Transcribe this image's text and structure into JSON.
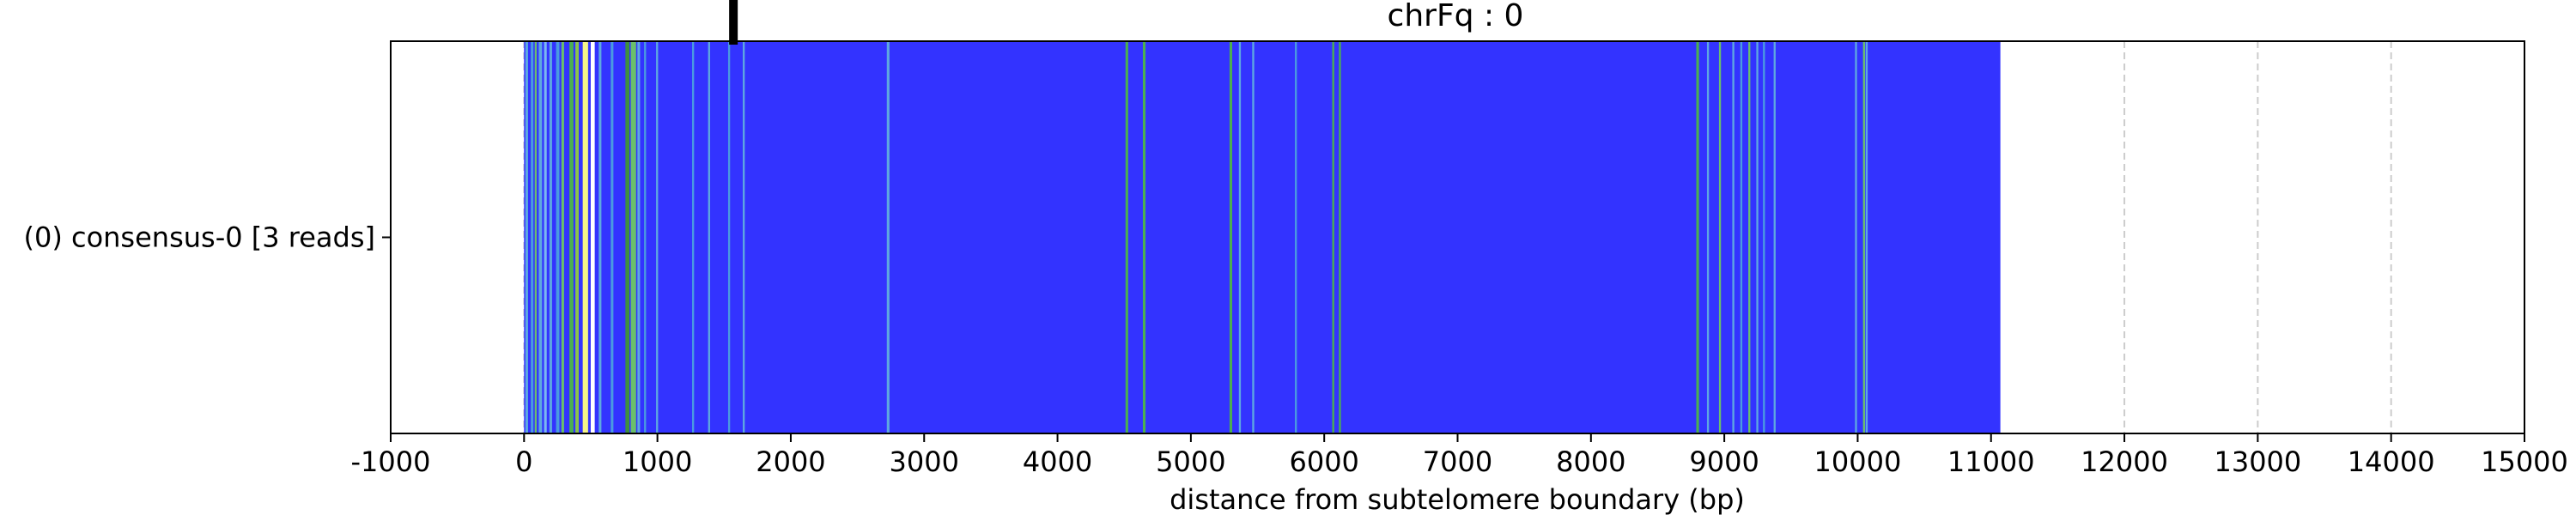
{
  "chart_data": {
    "type": "heatmap",
    "title": "chrFq : 0",
    "xlabel": "distance from subtelomere boundary (bp)",
    "ylabel": "",
    "xlim": [
      -1000,
      15000
    ],
    "xticks": [
      -1000,
      0,
      1000,
      2000,
      3000,
      4000,
      5000,
      6000,
      7000,
      8000,
      9000,
      10000,
      11000,
      12000,
      13000,
      14000,
      15000
    ],
    "tick_labels": [
      "-1000",
      "0",
      "1000",
      "2000",
      "3000",
      "4000",
      "5000",
      "6000",
      "7000",
      "8000",
      "9000",
      "10000",
      "11000",
      "12000",
      "13000",
      "14000",
      "15000"
    ],
    "grid": "vertical dashed",
    "rows": [
      {
        "label": "(0) consensus-0 [3 reads]",
        "start": 0,
        "end": 11070
      }
    ],
    "base_color": "#3333ff",
    "marker": {
      "position": 1570,
      "color": "#000000"
    },
    "bands": [
      {
        "pos": 10,
        "width": 20,
        "color": "#5ea8e0"
      },
      {
        "pos": 50,
        "width": 20,
        "color": "#4a9be0"
      },
      {
        "pos": 80,
        "width": 15,
        "color": "#6bbf6b"
      },
      {
        "pos": 110,
        "width": 25,
        "color": "#5ea8e0"
      },
      {
        "pos": 150,
        "width": 20,
        "color": "#7ab8f0"
      },
      {
        "pos": 190,
        "width": 20,
        "color": "#5ea8e0"
      },
      {
        "pos": 240,
        "width": 25,
        "color": "#4a9be0"
      },
      {
        "pos": 280,
        "width": 20,
        "color": "#6bbf6b"
      },
      {
        "pos": 340,
        "width": 30,
        "color": "#4caf50"
      },
      {
        "pos": 385,
        "width": 25,
        "color": "#8bc34a"
      },
      {
        "pos": 440,
        "width": 40,
        "color": "#f4f488"
      },
      {
        "pos": 500,
        "width": 30,
        "color": "#ffffff"
      },
      {
        "pos": 560,
        "width": 20,
        "color": "#5ea8e0"
      },
      {
        "pos": 650,
        "width": 20,
        "color": "#4a9be0"
      },
      {
        "pos": 760,
        "width": 30,
        "color": "#3f8f3f"
      },
      {
        "pos": 800,
        "width": 40,
        "color": "#6bbf6b"
      },
      {
        "pos": 850,
        "width": 20,
        "color": "#5ea8e0"
      },
      {
        "pos": 900,
        "width": 15,
        "color": "#4a9be0"
      },
      {
        "pos": 990,
        "width": 15,
        "color": "#5ea8e0"
      },
      {
        "pos": 1260,
        "width": 15,
        "color": "#4a9be0"
      },
      {
        "pos": 1380,
        "width": 15,
        "color": "#5ea8e0"
      },
      {
        "pos": 1530,
        "width": 15,
        "color": "#4a9be0"
      },
      {
        "pos": 1640,
        "width": 15,
        "color": "#5ea8e0"
      },
      {
        "pos": 2720,
        "width": 20,
        "color": "#5ea8e0"
      },
      {
        "pos": 4510,
        "width": 20,
        "color": "#4caf50"
      },
      {
        "pos": 4640,
        "width": 20,
        "color": "#4caf50"
      },
      {
        "pos": 5290,
        "width": 20,
        "color": "#4caf50"
      },
      {
        "pos": 5360,
        "width": 15,
        "color": "#5ea8e0"
      },
      {
        "pos": 5460,
        "width": 15,
        "color": "#5ea8e0"
      },
      {
        "pos": 5780,
        "width": 15,
        "color": "#4a9be0"
      },
      {
        "pos": 6060,
        "width": 15,
        "color": "#4caf50"
      },
      {
        "pos": 6110,
        "width": 15,
        "color": "#4caf50"
      },
      {
        "pos": 8790,
        "width": 20,
        "color": "#4caf50"
      },
      {
        "pos": 8870,
        "width": 15,
        "color": "#5ea8e0"
      },
      {
        "pos": 8960,
        "width": 15,
        "color": "#6bbf6b"
      },
      {
        "pos": 9060,
        "width": 15,
        "color": "#5ea8e0"
      },
      {
        "pos": 9120,
        "width": 15,
        "color": "#4a9be0"
      },
      {
        "pos": 9180,
        "width": 15,
        "color": "#6bbf6b"
      },
      {
        "pos": 9240,
        "width": 15,
        "color": "#5ea8e0"
      },
      {
        "pos": 9290,
        "width": 15,
        "color": "#4a9be0"
      },
      {
        "pos": 9370,
        "width": 15,
        "color": "#5ea8e0"
      },
      {
        "pos": 9980,
        "width": 15,
        "color": "#5ea8e0"
      },
      {
        "pos": 10040,
        "width": 15,
        "color": "#6bbf6b"
      },
      {
        "pos": 10060,
        "width": 15,
        "color": "#5ea8e0"
      }
    ]
  }
}
